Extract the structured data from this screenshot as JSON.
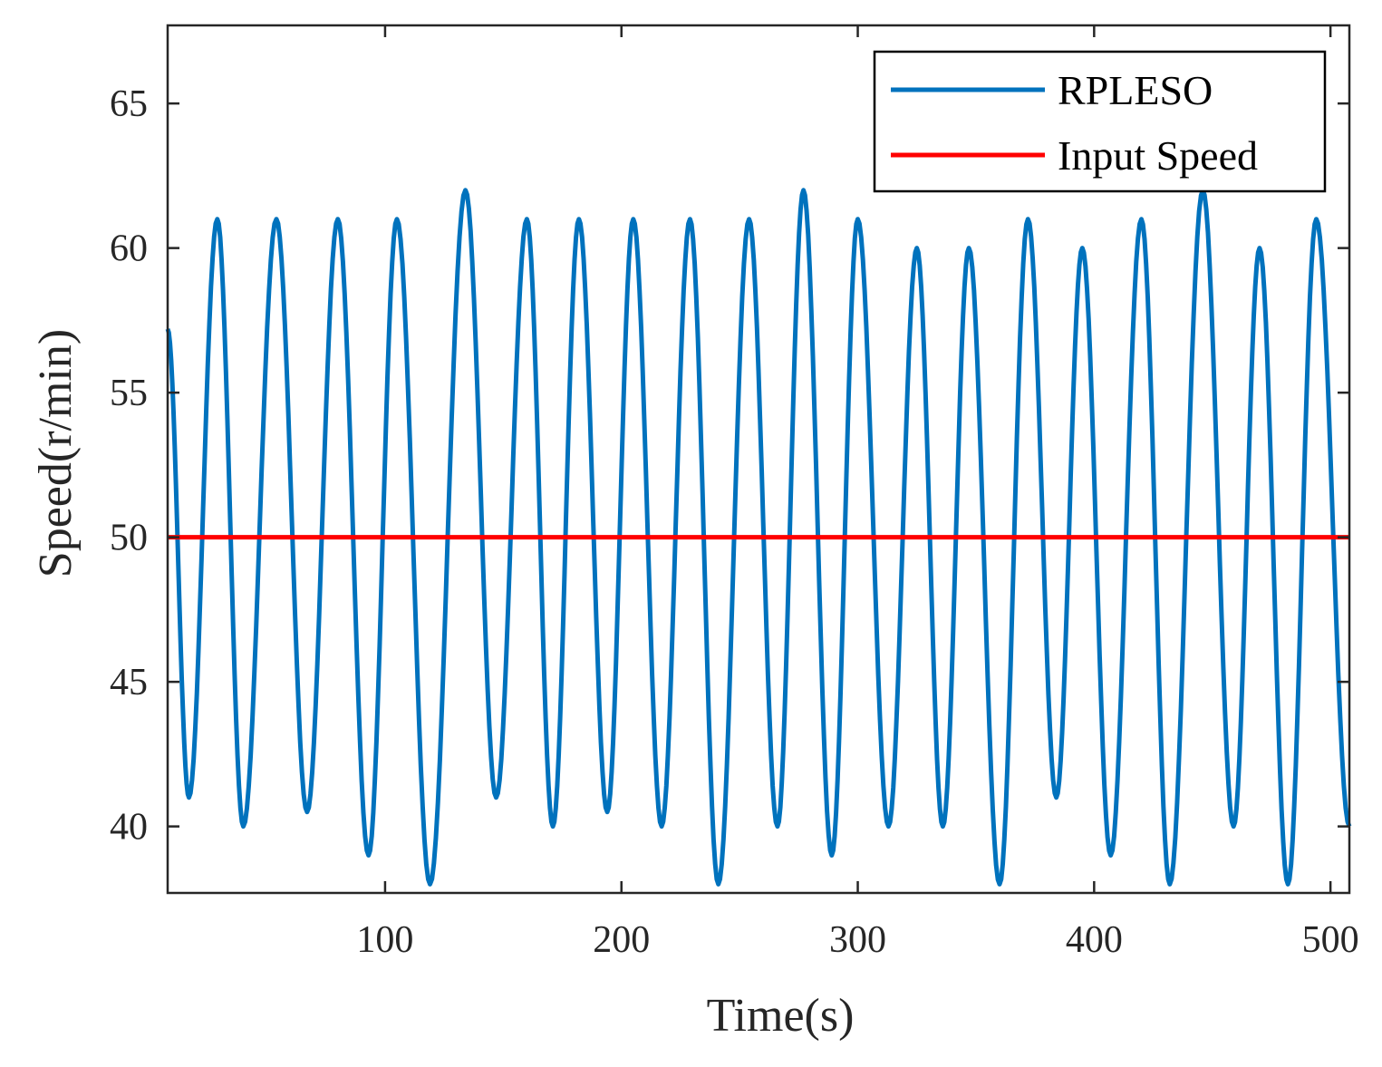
{
  "chart_data": {
    "type": "line",
    "title": "",
    "xlabel": "Time(s)",
    "ylabel": "Speed(r/min)",
    "xlim": [
      8,
      508
    ],
    "ylim": [
      37.7,
      67.7
    ],
    "grid": false,
    "legend_position": "top-right",
    "xticks": [
      100,
      200,
      300,
      400,
      500
    ],
    "xtick_labels": [
      "100",
      "200",
      "300",
      "400",
      "500"
    ],
    "yticks": [
      40,
      45,
      50,
      55,
      60,
      65
    ],
    "ytick_labels": [
      "40",
      "45",
      "50",
      "55",
      "60",
      "65"
    ],
    "colors": {
      "rpleso": "#0072BD",
      "input": "#FF0000",
      "axis": "#262626"
    },
    "series": [
      {
        "name": "RPLESO",
        "extrema": [
          [
            8,
            57.2
          ],
          [
            17,
            41
          ],
          [
            29,
            61
          ],
          [
            40,
            40
          ],
          [
            54,
            61
          ],
          [
            67,
            40.5
          ],
          [
            80,
            61
          ],
          [
            93,
            39
          ],
          [
            105,
            61
          ],
          [
            119,
            38
          ],
          [
            134,
            62
          ],
          [
            147,
            41
          ],
          [
            160,
            61
          ],
          [
            171,
            40
          ],
          [
            182,
            61
          ],
          [
            194,
            40.5
          ],
          [
            205,
            61
          ],
          [
            217,
            40
          ],
          [
            229,
            61
          ],
          [
            241,
            38
          ],
          [
            254,
            61
          ],
          [
            266,
            40
          ],
          [
            277,
            62
          ],
          [
            289,
            39
          ],
          [
            300,
            61
          ],
          [
            313,
            40
          ],
          [
            325,
            60
          ],
          [
            336,
            40
          ],
          [
            347,
            60
          ],
          [
            360,
            38
          ],
          [
            372,
            61
          ],
          [
            384,
            41
          ],
          [
            395,
            60
          ],
          [
            407,
            39
          ],
          [
            420,
            61
          ],
          [
            432,
            38
          ],
          [
            446,
            62
          ],
          [
            459,
            40
          ],
          [
            470,
            60
          ],
          [
            482,
            38
          ],
          [
            494,
            61
          ],
          [
            508,
            40
          ]
        ]
      },
      {
        "name": "Input Speed",
        "x": [
          8,
          508
        ],
        "values": [
          50,
          50
        ]
      }
    ]
  }
}
